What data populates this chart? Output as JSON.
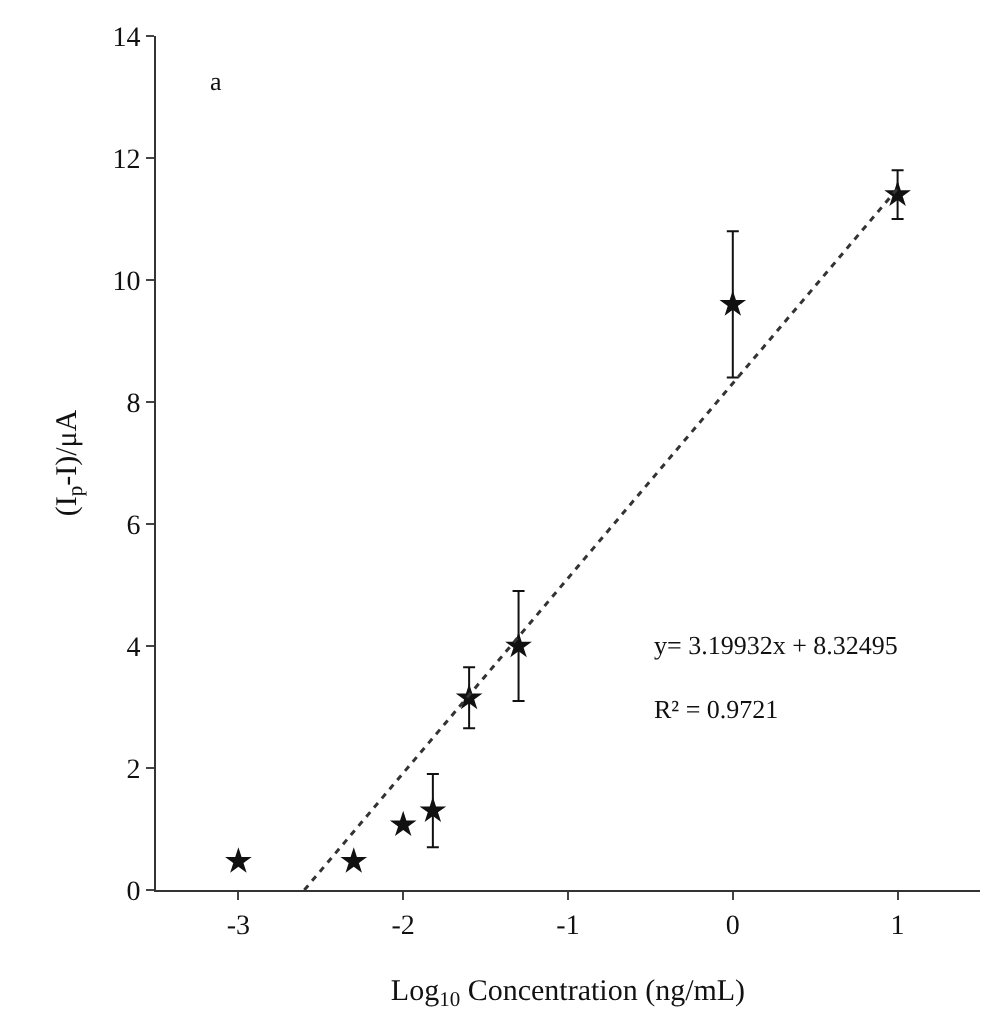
{
  "chart_data": {
    "type": "scatter",
    "xlabel": "Log$_{10}$ Concentration (ng/mL)",
    "ylabel": "(I$_{p}$-I)/μA",
    "annotations": [
      "a",
      "y= 3.19932x + 8.32495",
      "R² = 0.9721"
    ],
    "xlim": [
      -3.5,
      1.5
    ],
    "xticks": [
      -3,
      -2,
      -1,
      0,
      1
    ],
    "ylim": [
      0,
      14
    ],
    "yticks": [
      0,
      2,
      4,
      6,
      8,
      10,
      12,
      14
    ],
    "grid": false,
    "series": [
      {
        "marker": "star",
        "color": "#111111",
        "x": [
          -3,
          -2.3,
          -2,
          -1.82,
          -1.6,
          -1.3,
          0,
          1
        ],
        "values": [
          0.47,
          0.47,
          1.07,
          1.3,
          3.15,
          4.0,
          9.6,
          11.4
        ],
        "errors": [
          null,
          null,
          null,
          0.6,
          0.5,
          0.9,
          1.2,
          0.4
        ]
      },
      {
        "type": "line",
        "color": "#333333",
        "line_style": "dotted",
        "x": [
          -2.6,
          1
        ],
        "values": [
          0,
          11.5
        ]
      }
    ]
  }
}
